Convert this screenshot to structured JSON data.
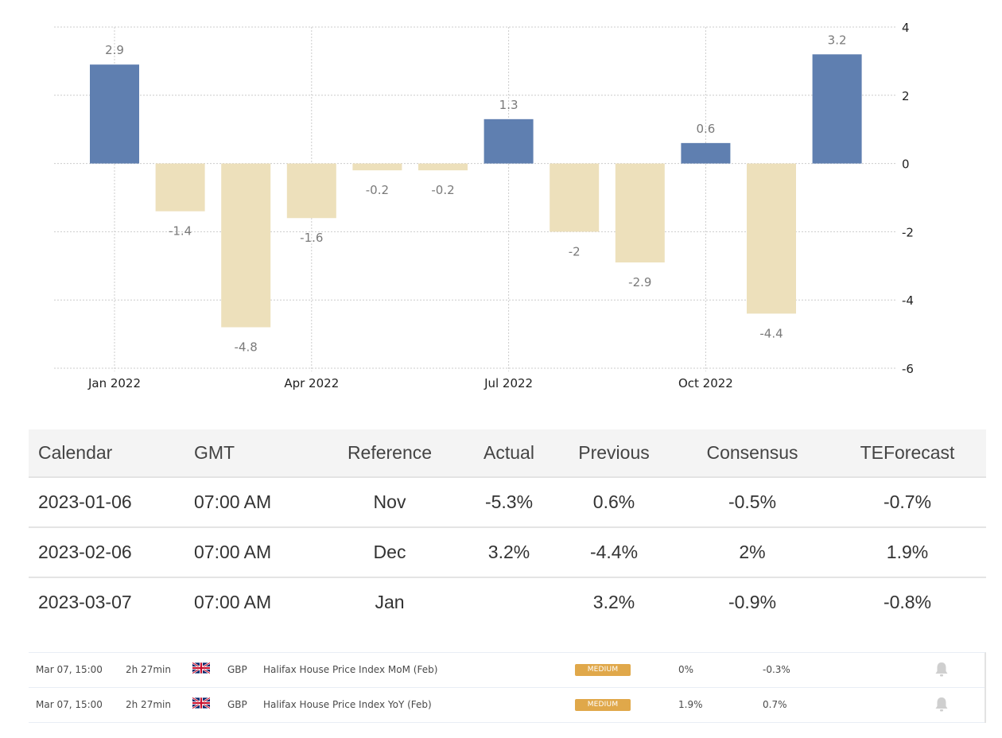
{
  "chart_data": {
    "type": "bar",
    "title": "",
    "xlabel": "",
    "ylabel": "",
    "categories": [
      "Jan 2022",
      "Feb 2022",
      "Mar 2022",
      "Apr 2022",
      "May 2022",
      "Jun 2022",
      "Jul 2022",
      "Aug 2022",
      "Sep 2022",
      "Oct 2022",
      "Nov 2022",
      "Dec 2022"
    ],
    "values": [
      2.9,
      -1.4,
      -4.8,
      -1.6,
      -0.2,
      -0.2,
      1.3,
      -2,
      -2.9,
      0.6,
      -4.4,
      3.2
    ],
    "data_labels": [
      "2.9",
      "-1.4",
      "-4.8",
      "-1.6",
      "-0.2",
      "-0.2",
      "1.3",
      "-2",
      "-2.9",
      "0.6",
      "-4.4",
      "3.2"
    ],
    "x_tick_labels": [
      {
        "category_index": 0,
        "label": "Jan 2022"
      },
      {
        "category_index": 3,
        "label": "Apr 2022"
      },
      {
        "category_index": 6,
        "label": "Jul 2022"
      },
      {
        "category_index": 9,
        "label": "Oct 2022"
      }
    ],
    "y_ticks": [
      4,
      2,
      0,
      -2,
      -4,
      -6
    ],
    "y_tick_labels": [
      "4",
      "2",
      "0",
      "-2",
      "-4",
      "-6"
    ],
    "ylim": [
      -6,
      4
    ],
    "y_axis_side": "right",
    "grid": true,
    "colors": {
      "positive": "#5f7fb0",
      "negative": "#ede0bb",
      "label": "#7a7a7a",
      "axis": "#222222",
      "grid": "#cccccc"
    }
  },
  "table": {
    "headers": [
      "Calendar",
      "GMT",
      "Reference",
      "Actual",
      "Previous",
      "Consensus",
      "TEForecast"
    ],
    "rows": [
      {
        "calendar": "2023-01-06",
        "gmt": "07:00 AM",
        "reference": "Nov",
        "actual": "-5.3%",
        "previous": "0.6%",
        "consensus": "-0.5%",
        "teforecast": "-0.7%"
      },
      {
        "calendar": "2023-02-06",
        "gmt": "07:00 AM",
        "reference": "Dec",
        "actual": "3.2%",
        "previous": "-4.4%",
        "consensus": "2%",
        "teforecast": "1.9%"
      },
      {
        "calendar": "2023-03-07",
        "gmt": "07:00 AM",
        "reference": "Jan",
        "actual": "",
        "previous": "3.2%",
        "consensus": "-0.9%",
        "teforecast": "-0.8%"
      }
    ]
  },
  "calendar_events": [
    {
      "time": "Mar 07, 15:00",
      "remaining": "2h 27min",
      "flag_icon": "uk-flag-icon",
      "currency": "GBP",
      "event": "Halifax House Price Index MoM (Feb)",
      "impact": "MEDIUM",
      "actual": "0%",
      "previous": "-0.3%",
      "alert_icon": "bell-icon"
    },
    {
      "time": "Mar 07, 15:00",
      "remaining": "2h 27min",
      "flag_icon": "uk-flag-icon",
      "currency": "GBP",
      "event": "Halifax House Price Index YoY (Feb)",
      "impact": "MEDIUM",
      "actual": "1.9%",
      "previous": "0.7%",
      "alert_icon": "bell-icon"
    }
  ],
  "colors": {
    "impact_medium": "#e0a84a"
  }
}
